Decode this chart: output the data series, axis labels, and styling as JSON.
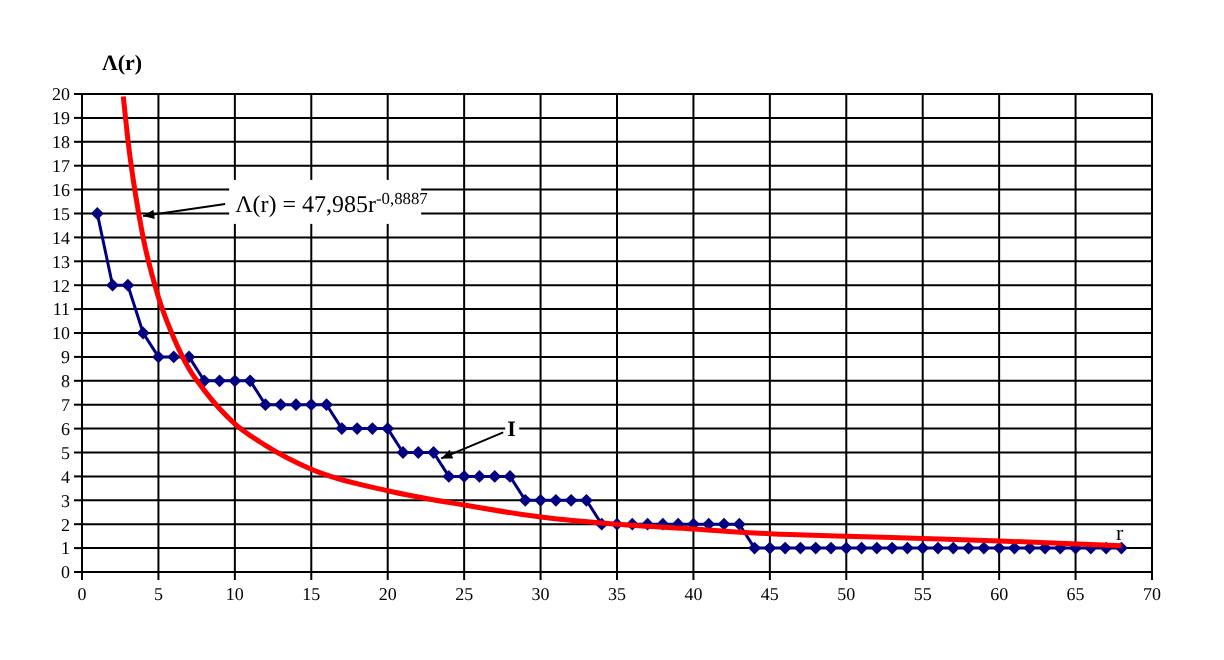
{
  "chart_data": {
    "type": "line",
    "xlabel": "r",
    "ylabel": "Λ(r)",
    "xlim": [
      0,
      70
    ],
    "xticks": [
      0,
      5,
      10,
      15,
      20,
      25,
      30,
      35,
      40,
      45,
      50,
      55,
      60,
      65,
      70
    ],
    "ylim": [
      0,
      20
    ],
    "yticks": [
      0,
      1,
      2,
      3,
      4,
      5,
      6,
      7,
      8,
      9,
      10,
      11,
      12,
      13,
      14,
      15,
      16,
      17,
      18,
      19,
      20
    ],
    "grid": true,
    "series": [
      {
        "name": "I",
        "color": "#000080",
        "marker": "diamond",
        "x": [
          1,
          2,
          3,
          4,
          5,
          6,
          7,
          8,
          9,
          10,
          11,
          12,
          13,
          14,
          15,
          16,
          17,
          18,
          19,
          20,
          21,
          22,
          23,
          24,
          25,
          26,
          27,
          28,
          29,
          30,
          31,
          32,
          33,
          34,
          35,
          36,
          37,
          38,
          39,
          40,
          41,
          42,
          43,
          44,
          45,
          46,
          47,
          48,
          49,
          50,
          51,
          52,
          53,
          54,
          55,
          56,
          57,
          58,
          59,
          60,
          61,
          62,
          63,
          64,
          65,
          66,
          67,
          68
        ],
        "values": [
          15,
          12,
          12,
          10,
          9,
          9,
          9,
          8,
          8,
          8,
          8,
          7,
          7,
          7,
          7,
          7,
          6,
          6,
          6,
          6,
          5,
          5,
          5,
          4,
          4,
          4,
          4,
          4,
          3,
          3,
          3,
          3,
          3,
          2,
          2,
          2,
          2,
          2,
          2,
          2,
          2,
          2,
          2,
          1,
          1,
          1,
          1,
          1,
          1,
          1,
          1,
          1,
          1,
          1,
          1,
          1,
          1,
          1,
          1,
          1,
          1,
          1,
          1,
          1,
          1,
          1,
          1,
          1
        ]
      },
      {
        "color": "#ff0000",
        "marker": "none",
        "x": [
          2.7,
          3,
          3.5,
          4,
          5,
          6,
          7,
          8,
          10,
          12,
          15,
          20,
          25,
          30,
          35,
          40,
          45,
          50,
          55,
          60,
          68
        ],
        "values": [
          19.9,
          18.1,
          15.8,
          14.0,
          11.5,
          9.8,
          8.5,
          7.6,
          6.2,
          5.3,
          4.3,
          3.4,
          2.8,
          2.3,
          2.0,
          1.8,
          1.6,
          1.5,
          1.4,
          1.3,
          1.1
        ]
      }
    ],
    "annotations": [
      {
        "text": "Λ(r) = 47,985r$^{-0,8887}$",
        "x": 4,
        "y": 14.9
      }
    ]
  }
}
